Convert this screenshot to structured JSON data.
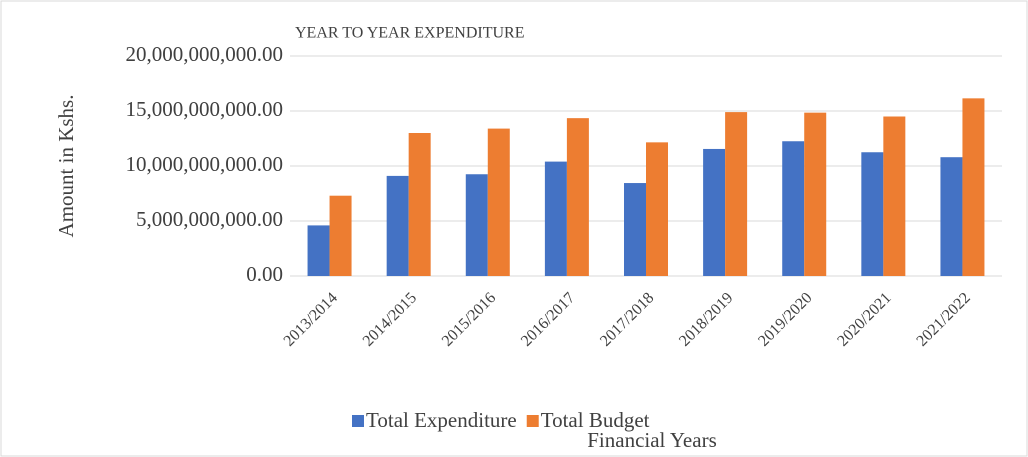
{
  "chart_data": {
    "type": "bar",
    "title": "YEAR TO YEAR EXPENDITURE",
    "y_label": "Amount in Kshs.",
    "x_label": "Financial Years",
    "categories": [
      "2013/2014",
      "2014/2015",
      "2015/2016",
      "2016/2017",
      "2017/2018",
      "2018/2019",
      "2019/2020",
      "2020/2021",
      "2021/2022"
    ],
    "series": [
      {
        "name": "Total Expenditure",
        "color": "#4472c4",
        "values": [
          4600000000,
          9100000000,
          9250000000,
          10400000000,
          8450000000,
          11550000000,
          12250000000,
          11250000000,
          10800000000
        ]
      },
      {
        "name": "Total Budget",
        "color": "#ed7d31",
        "values": [
          7300000000,
          13000000000,
          13400000000,
          14350000000,
          12150000000,
          14900000000,
          14850000000,
          14500000000,
          16150000000
        ]
      }
    ],
    "ylim": [
      0,
      20000000000
    ],
    "yticks": [
      {
        "value": 0,
        "label": "0.00"
      },
      {
        "value": 5000000000,
        "label": "5,000,000,000.00"
      },
      {
        "value": 10000000000,
        "label": "10,000,000,000.00"
      },
      {
        "value": 15000000000,
        "label": "15,000,000,000.00"
      },
      {
        "value": 20000000000,
        "label": "20,000,000,000.00"
      }
    ],
    "grid": true,
    "legend": "bottom"
  }
}
